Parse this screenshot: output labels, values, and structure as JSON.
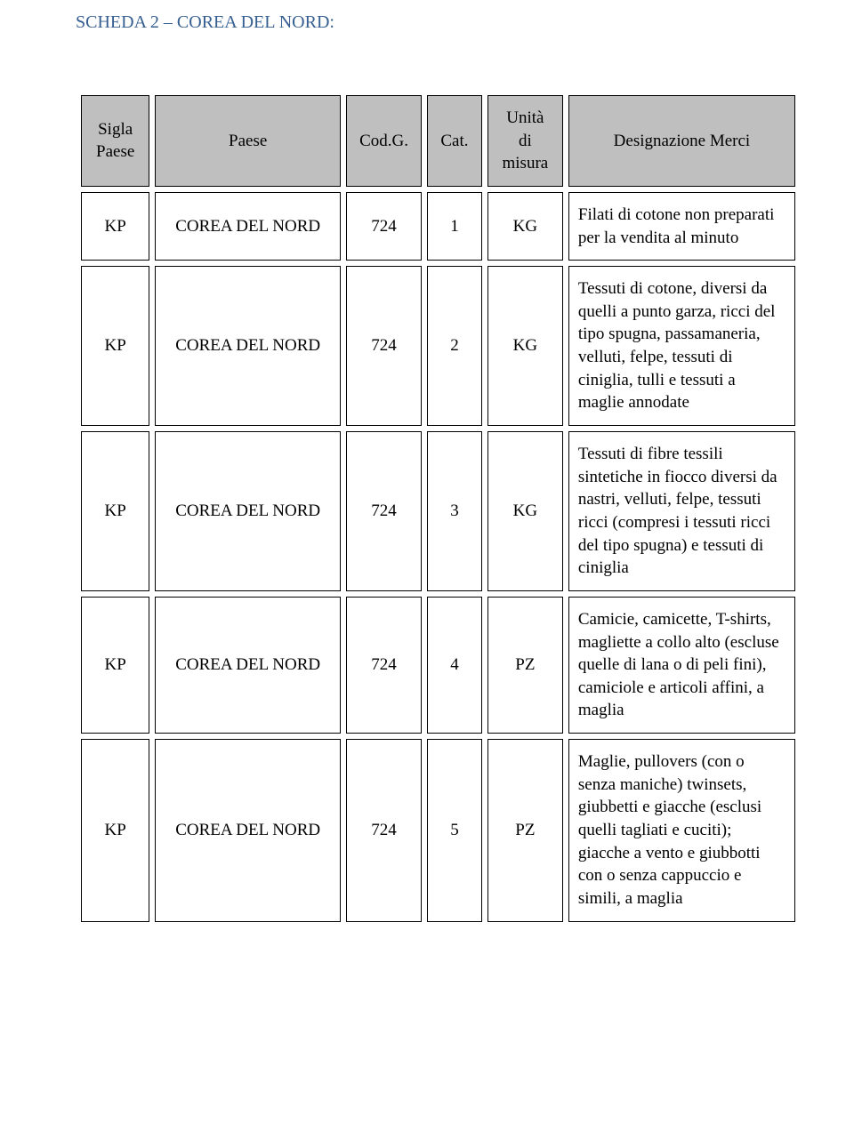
{
  "heading": "SCHEDA 2 – COREA DEL NORD:",
  "columns": {
    "sigla": "Sigla\nPaese",
    "paese": "Paese",
    "codg": "Cod.G.",
    "cat": "Cat.",
    "unit": "Unità\ndi\nmisura",
    "desc": "Designazione Merci"
  },
  "rows": [
    {
      "sigla": "KP",
      "paese": "COREA DEL NORD",
      "codg": "724",
      "cat": "1",
      "unit": "KG",
      "desc": "Filati di cotone non preparati per la vendita al minuto"
    },
    {
      "sigla": "KP",
      "paese": "COREA DEL NORD",
      "codg": "724",
      "cat": "2",
      "unit": "KG",
      "desc": "Tessuti di cotone, diversi da quelli a punto garza, ricci del tipo spugna, passamaneria, velluti, felpe, tessuti di ciniglia, tulli e tessuti a maglie annodate"
    },
    {
      "sigla": "KP",
      "paese": "COREA DEL NORD",
      "codg": "724",
      "cat": "3",
      "unit": "KG",
      "desc": "Tessuti di fibre tessili sintetiche in fiocco diversi da nastri, velluti, felpe, tessuti ricci (compresi i tessuti ricci del tipo spugna) e tessuti di ciniglia"
    },
    {
      "sigla": "KP",
      "paese": "COREA DEL NORD",
      "codg": "724",
      "cat": "4",
      "unit": "PZ",
      "desc": "Camicie, camicette, T-shirts, magliette a collo alto (escluse quelle di lana o di peli fini), camiciole e articoli affini, a maglia"
    },
    {
      "sigla": "KP",
      "paese": "COREA DEL NORD",
      "codg": "724",
      "cat": "5",
      "unit": "PZ",
      "desc": "Maglie, pullovers (con o senza maniche) twinsets, giubbetti e giacche (esclusi quelli tagliati e cuciti); giacche a vento e giubbotti con o senza cappuccio e simili, a maglia"
    }
  ]
}
